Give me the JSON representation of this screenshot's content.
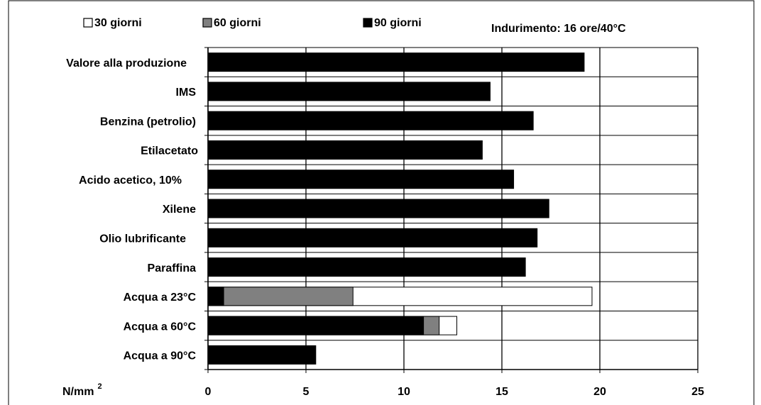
{
  "chart_data": {
    "type": "overlapped_bar_horizontal",
    "annotation": "Indurimento: 16 ore/40°C",
    "axis_unit": "N/mm",
    "axis_unit_exponent": "2",
    "categories": [
      "Valore alla produzione",
      "IMS",
      "Benzina (petrolio)",
      "Etilacetato",
      "Acido acetico, 10%",
      "Xilene",
      "Olio lubrificante",
      "Paraffina",
      "Acqua a 23°C",
      "Acqua a 60°C",
      "Acqua a 90°C"
    ],
    "series": [
      {
        "name": "30 giorni",
        "color": "#ffffff",
        "values": [
          null,
          null,
          null,
          null,
          null,
          null,
          null,
          null,
          19.6,
          12.7,
          null
        ]
      },
      {
        "name": "60 giorni",
        "color": "#808080",
        "values": [
          null,
          null,
          null,
          null,
          null,
          null,
          null,
          null,
          7.4,
          11.8,
          null
        ]
      },
      {
        "name": "90 giorni",
        "color": "#000000",
        "values": [
          19.2,
          14.4,
          16.6,
          14.0,
          15.6,
          17.4,
          16.8,
          16.2,
          0.8,
          11.0,
          5.5
        ]
      }
    ],
    "xlim": [
      0,
      25
    ],
    "xticks": [
      0,
      5,
      10,
      15,
      20,
      25
    ],
    "grid": true
  }
}
